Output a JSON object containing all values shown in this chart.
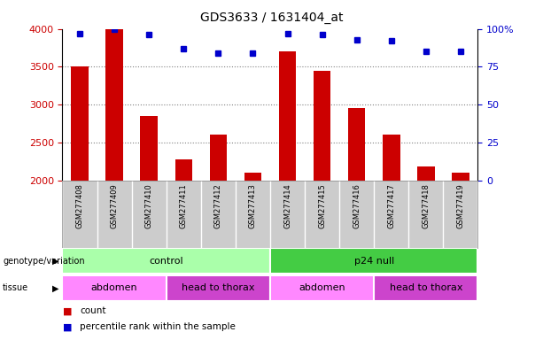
{
  "title": "GDS3633 / 1631404_at",
  "samples": [
    "GSM277408",
    "GSM277409",
    "GSM277410",
    "GSM277411",
    "GSM277412",
    "GSM277413",
    "GSM277414",
    "GSM277415",
    "GSM277416",
    "GSM277417",
    "GSM277418",
    "GSM277419"
  ],
  "bar_values": [
    3500,
    4000,
    2850,
    2280,
    2600,
    2100,
    3700,
    3450,
    2950,
    2600,
    2180,
    2100
  ],
  "dot_values": [
    97,
    100,
    96,
    87,
    84,
    84,
    97,
    96,
    93,
    92,
    85,
    85
  ],
  "ylim_left": [
    2000,
    4000
  ],
  "ylim_right": [
    0,
    100
  ],
  "yticks_left": [
    2000,
    2500,
    3000,
    3500,
    4000
  ],
  "yticks_right": [
    0,
    25,
    50,
    75,
    100
  ],
  "bar_color": "#cc0000",
  "dot_color": "#0000cc",
  "bar_width": 0.5,
  "background_color": "#ffffff",
  "plot_bg_color": "#ffffff",
  "genotype_row": {
    "label": "genotype/variation",
    "groups": [
      {
        "text": "control",
        "start": 0,
        "end": 5,
        "color": "#aaffaa"
      },
      {
        "text": "p24 null",
        "start": 6,
        "end": 11,
        "color": "#44cc44"
      }
    ]
  },
  "tissue_row": {
    "label": "tissue",
    "groups": [
      {
        "text": "abdomen",
        "start": 0,
        "end": 2,
        "color": "#ff88ff"
      },
      {
        "text": "head to thorax",
        "start": 3,
        "end": 5,
        "color": "#cc44cc"
      },
      {
        "text": "abdomen",
        "start": 6,
        "end": 8,
        "color": "#ff88ff"
      },
      {
        "text": "head to thorax",
        "start": 9,
        "end": 11,
        "color": "#cc44cc"
      }
    ]
  },
  "tick_label_color_left": "#cc0000",
  "tick_label_color_right": "#0000cc",
  "sample_box_color": "#cccccc",
  "sample_box_line_color": "#ffffff"
}
